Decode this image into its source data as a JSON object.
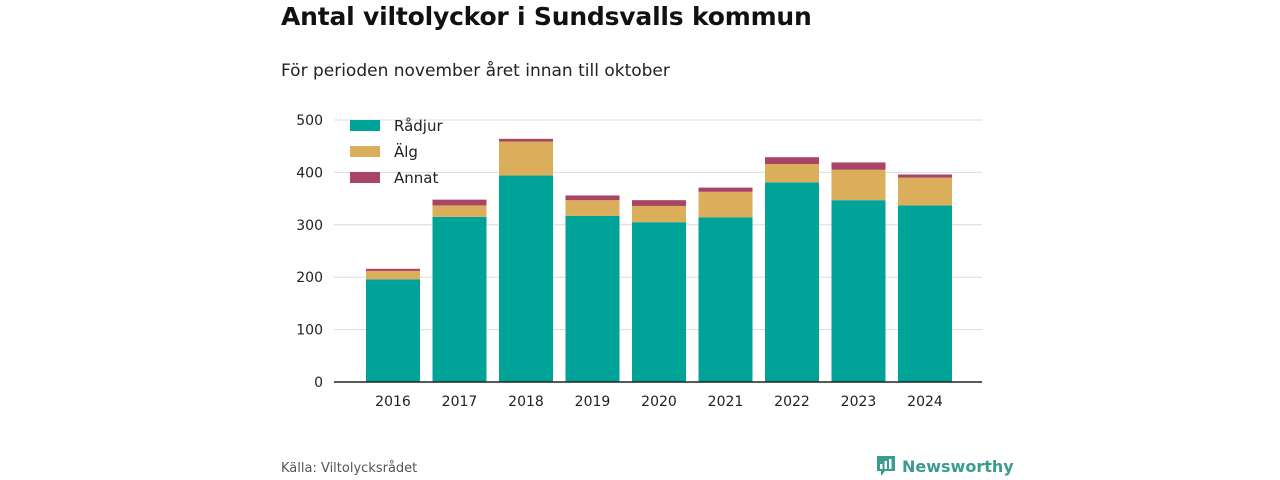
{
  "chart_data": {
    "type": "bar",
    "stacked": true,
    "title": "Antal viltolyckor i Sundsvalls kommun",
    "subtitle": "För perioden november året innan till oktober",
    "categories": [
      "2016",
      "2017",
      "2018",
      "2019",
      "2020",
      "2021",
      "2022",
      "2023",
      "2024"
    ],
    "series": [
      {
        "name": "Rådjur",
        "color": "#00a398",
        "values": [
          196,
          315,
          394,
          317,
          305,
          314,
          381,
          347,
          337
        ]
      },
      {
        "name": "Älg",
        "color": "#dbae5c",
        "values": [
          16,
          22,
          65,
          30,
          31,
          49,
          35,
          58,
          53
        ]
      },
      {
        "name": "Annat",
        "color": "#a94467",
        "values": [
          4,
          11,
          5,
          9,
          11,
          8,
          13,
          14,
          6
        ]
      }
    ],
    "y_ticks": [
      "0",
      "100",
      "200",
      "300",
      "400",
      "500"
    ],
    "ylim": [
      0,
      500
    ],
    "grid": true,
    "legend_position": "top-left"
  },
  "footer": {
    "source": "Källa: Viltolycksrådet",
    "brand": "Newsworthy",
    "brand_icon": "newsworthy-logo-icon"
  }
}
